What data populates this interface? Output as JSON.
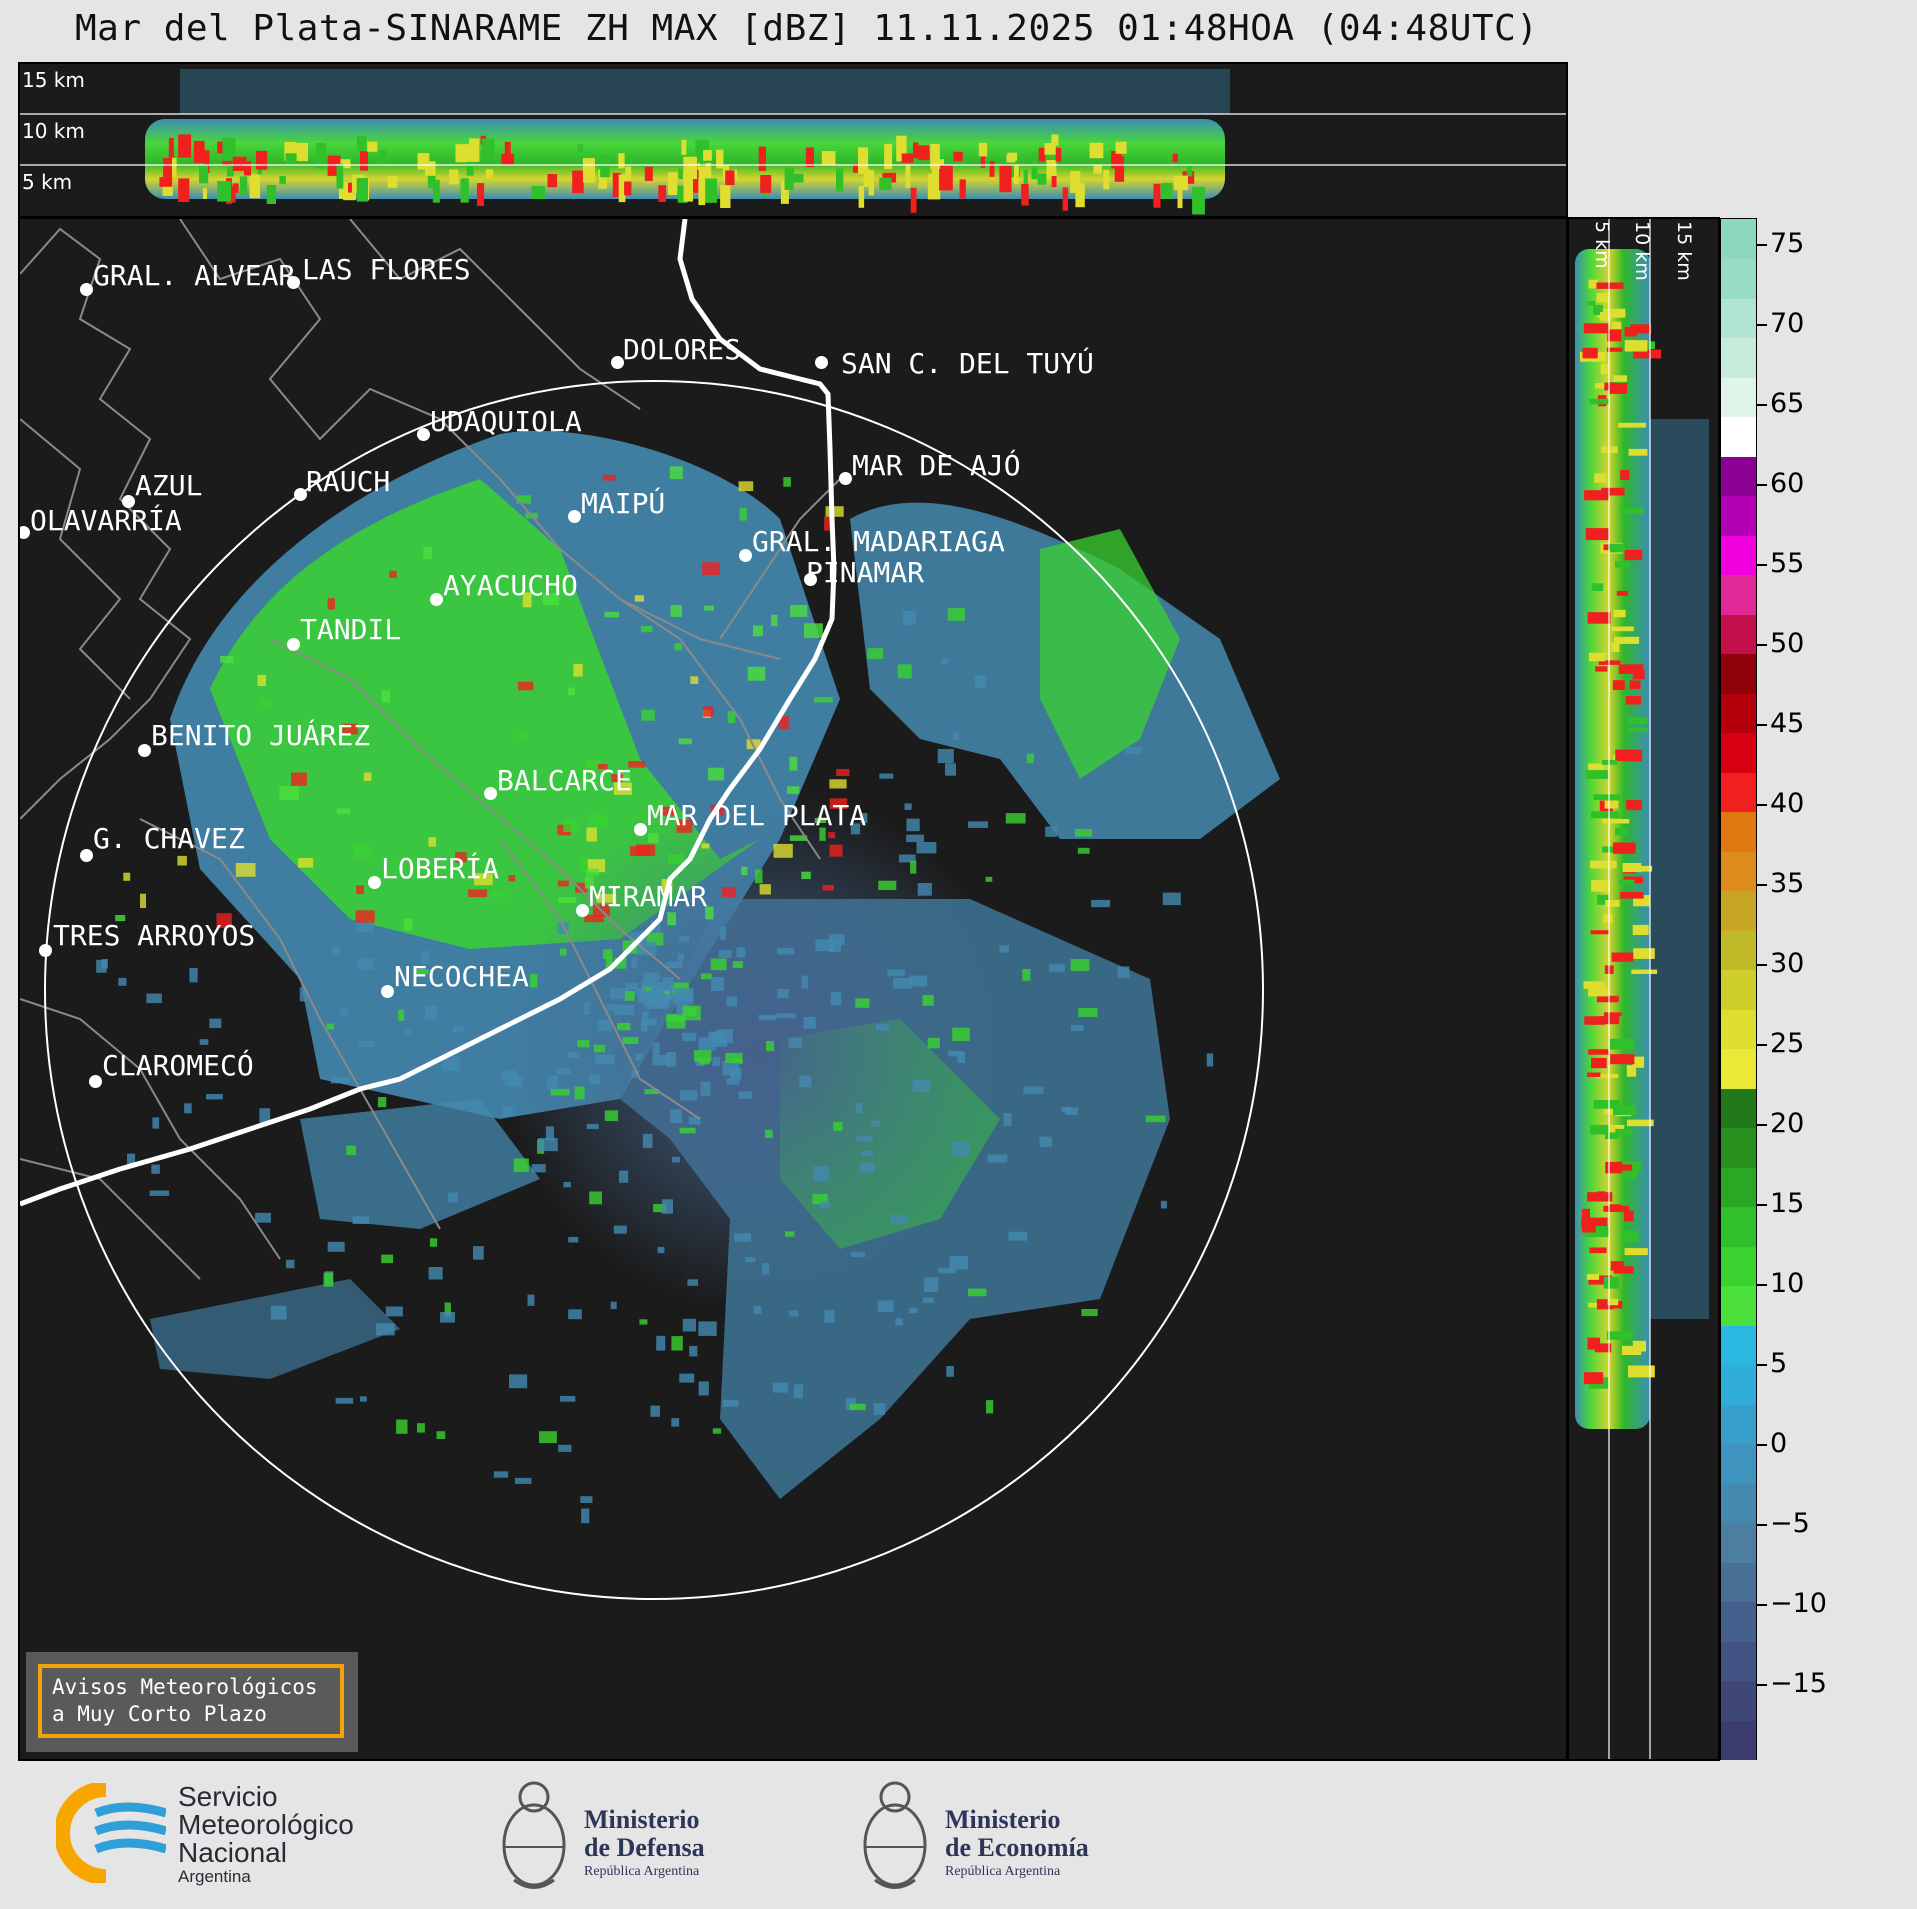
{
  "title": "Mar del Plata-SINARAME ZH MAX [dBZ] 11.11.2025 01:48HOA (04:48UTC)",
  "top_panel": {
    "altitude_labels": [
      "15 km",
      "10 km",
      "5 km"
    ]
  },
  "side_panel": {
    "altitude_labels": [
      "5 km",
      "10 km",
      "15 km"
    ]
  },
  "cities": [
    {
      "name": "GRAL. ALVEAR"
    },
    {
      "name": "LAS FLORES"
    },
    {
      "name": "DOLORES"
    },
    {
      "name": "SAN C. DEL TUYÚ"
    },
    {
      "name": "UDAQUIOLA"
    },
    {
      "name": "MAR DE AJÓ"
    },
    {
      "name": "AZUL"
    },
    {
      "name": "RAUCH"
    },
    {
      "name": "MAIPÚ"
    },
    {
      "name": "OLAVARRÍA"
    },
    {
      "name": "GRAL. MADARIAGA"
    },
    {
      "name": "PINAMAR"
    },
    {
      "name": "AYACUCHO"
    },
    {
      "name": "TANDIL"
    },
    {
      "name": "BENITO JUÁREZ"
    },
    {
      "name": "BALCARCE"
    },
    {
      "name": "MAR DEL PLATA"
    },
    {
      "name": "G. CHAVEZ"
    },
    {
      "name": "LOBERÍA"
    },
    {
      "name": "MIRAMAR"
    },
    {
      "name": "TRES ARROYOS"
    },
    {
      "name": "NECOCHEA"
    },
    {
      "name": "CLAROMECÓ"
    }
  ],
  "colorbar": {
    "ticks": [
      "75",
      "70",
      "65",
      "60",
      "55",
      "50",
      "45",
      "40",
      "35",
      "30",
      "25",
      "20",
      "15",
      "10",
      "5",
      "0",
      "−5",
      "−10",
      "−15"
    ],
    "colors": [
      "#3c3c6e",
      "#3f4678",
      "#425282",
      "#45608c",
      "#486f96",
      "#4b7ea0",
      "#4489b0",
      "#3e94be",
      "#379fca",
      "#30acd8",
      "#2bb8e0",
      "#4be03c",
      "#3ad22f",
      "#30c02a",
      "#2aa825",
      "#27901f",
      "#24781c",
      "#eaea36",
      "#dede30",
      "#cfcf2c",
      "#c0b928",
      "#c9a526",
      "#dc8c1c",
      "#e07812",
      "#f0201e",
      "#d80010",
      "#b4000c",
      "#900008",
      "#c4104a",
      "#e02896",
      "#f000dc",
      "#b400b4",
      "#8c0096",
      "#ffffff",
      "#e0f4ea",
      "#c8ecdc",
      "#b0e4d0",
      "#98dcc4",
      "#8cd8bc"
    ]
  },
  "warning_box": {
    "line1": "Avisos Meteorológicos",
    "line2": "a Muy Corto Plazo"
  },
  "logos": {
    "smn": {
      "line1": "Servicio",
      "line2": "Meteorológico",
      "line3": "Nacional",
      "line4": "Argentina"
    },
    "defensa": {
      "line1": "Ministerio",
      "line2": "de Defensa",
      "line3": "República Argentina"
    },
    "economia": {
      "line1": "Ministerio",
      "line2": "de Economía",
      "line3": "República Argentina"
    }
  }
}
